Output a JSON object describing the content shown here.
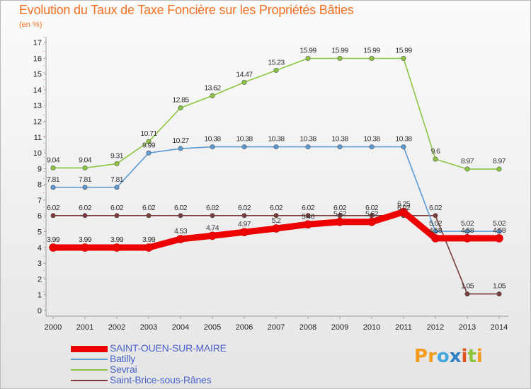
{
  "title": "Evolution du Taux de Taxe Foncière sur les Propriétés Bâties",
  "subtitle": "(en %)",
  "logo": {
    "text": "Proxiti",
    "colors": [
      "#f39c1e",
      "#f39c1e",
      "#45a8de",
      "#2e7fc4",
      "#e2531f",
      "#8cc63f",
      "#f39c1e"
    ]
  },
  "chart_data": {
    "type": "line",
    "x": [
      "2000",
      "2001",
      "2002",
      "2003",
      "2004",
      "2005",
      "2006",
      "2007",
      "2008",
      "2009",
      "2010",
      "2011",
      "2012",
      "2013",
      "2014"
    ],
    "ylim": [
      0,
      17
    ],
    "yticks": [
      "0",
      "1",
      "2",
      "3",
      "4",
      "5",
      "6",
      "7",
      "8",
      "9",
      "10",
      "11",
      "12",
      "13",
      "14",
      "15",
      "16",
      "17"
    ],
    "grid": false,
    "series": [
      {
        "name": "SAINT-OUEN-SUR-MAIRE",
        "color": "#ee0000",
        "values": [
          3.99,
          3.99,
          3.99,
          3.99,
          4.53,
          4.74,
          4.97,
          5.2,
          5.46,
          5.62,
          5.62,
          6.25,
          4.58,
          4.58,
          4.58
        ],
        "labels": [
          "3.99",
          "3.99",
          "3.99",
          "3.99",
          "4.53",
          "4.74",
          "4.97",
          "5.2",
          "5.46",
          "5.62",
          "5.62",
          "6.25",
          "4.58",
          "4.58",
          "4.58"
        ]
      },
      {
        "name": "Batilly",
        "color": "#5b9bd5",
        "values": [
          7.81,
          7.81,
          7.81,
          9.99,
          10.27,
          10.38,
          10.38,
          10.38,
          10.38,
          10.38,
          10.38,
          10.38,
          5.02,
          5.02,
          5.02
        ],
        "labels": [
          "7.81",
          "7.81",
          "7.81",
          "9.99",
          "10.27",
          "10.38",
          "10.38",
          "10.38",
          "10.38",
          "10.38",
          "10.38",
          "10.38",
          "5.02",
          "5.02",
          "5.02"
        ]
      },
      {
        "name": "Sevrai",
        "color": "#8cc63f",
        "values": [
          9.04,
          9.04,
          9.31,
          10.71,
          12.85,
          13.62,
          14.47,
          15.23,
          15.99,
          15.99,
          15.99,
          15.99,
          9.6,
          8.97,
          8.97
        ],
        "labels": [
          "9.04",
          "9.04",
          "9.31",
          "10.71",
          "12.85",
          "13.62",
          "14.47",
          "15.23",
          "15.99",
          "15.99",
          "15.99",
          "15.99",
          "9.6",
          "8.97",
          "8.97"
        ]
      },
      {
        "name": "Saint-Brice-sous-Rânes",
        "color": "#7b3b3b",
        "values": [
          6.02,
          6.02,
          6.02,
          6.02,
          6.02,
          6.02,
          6.02,
          6.02,
          6.02,
          6.02,
          6.02,
          6.02,
          6.02,
          1.05,
          1.05
        ],
        "labels": [
          "6.02",
          "6.02",
          "6.02",
          "6.02",
          "6.02",
          "6.02",
          "6.02",
          "6.02",
          "6.02",
          "6.02",
          "6.02",
          "6.02",
          "6.02",
          "1.05",
          "1.05"
        ]
      }
    ]
  }
}
